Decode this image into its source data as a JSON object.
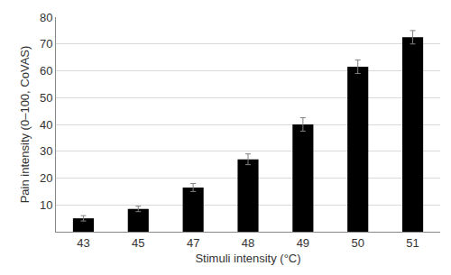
{
  "chart_data": {
    "type": "bar",
    "x_label": "Stimuli intensity (°C)",
    "y_label": "Pain intensity (0–100, CoVAS)",
    "categories": [
      "43",
      "45",
      "47",
      "48",
      "49",
      "50",
      "51"
    ],
    "values": [
      5,
      8.5,
      16.5,
      27,
      40,
      61.5,
      72.5
    ],
    "errors": [
      1,
      1,
      1.5,
      2,
      2.5,
      2.5,
      2.5
    ],
    "color": "#000000",
    "ylim": [
      0,
      80
    ],
    "yticks": [
      10,
      20,
      30,
      40,
      50,
      60,
      70,
      80
    ],
    "grid": true
  }
}
